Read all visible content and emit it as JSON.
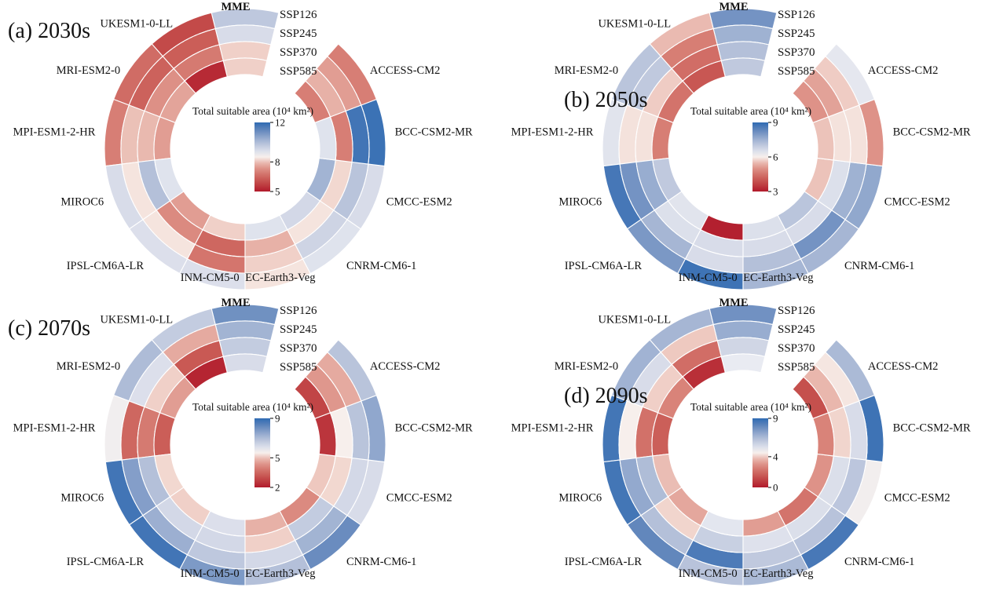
{
  "colors": {
    "background": "#ffffff",
    "text": "#111111",
    "cell_border": "#ffffff",
    "colormap_stops": [
      [
        0.0,
        "#b11a2b"
      ],
      [
        0.15,
        "#c6524e"
      ],
      [
        0.3,
        "#d98379"
      ],
      [
        0.4,
        "#e7b1a7"
      ],
      [
        0.47,
        "#f2d7cf"
      ],
      [
        0.5,
        "#f7efec"
      ],
      [
        0.53,
        "#eaecf2"
      ],
      [
        0.6,
        "#d8dce9"
      ],
      [
        0.7,
        "#b4c0d9"
      ],
      [
        0.8,
        "#8aa3cb"
      ],
      [
        0.9,
        "#5d83ba"
      ],
      [
        1.0,
        "#2e6bb3"
      ]
    ]
  },
  "chart_data": [
    {
      "type": "heatmap",
      "layout": "circular-rings",
      "title": "(a) 2030s",
      "colorbar": {
        "title": "Total suitable area (10⁴ km²)",
        "max": 12,
        "mid": 8,
        "min": 5
      },
      "rings": [
        "SSP126",
        "SSP245",
        "SSP370",
        "SSP585"
      ],
      "categories": [
        "MME",
        "UKESM1-0-LL",
        "MRI-ESM2-0",
        "MPI-ESM1-2-HR",
        "MIROC6",
        "IPSL-CM6A-LR",
        "INM-CM5-0",
        "EC-Earth3-Veg",
        "CNRM-CM6-1",
        "CMCC-ESM2",
        "BCC-CSM2-MR",
        "ACCESS-CM2"
      ],
      "series": [
        {
          "name": "MME",
          "values": [
            9.7,
            9.2,
            8.2,
            8.2
          ]
        },
        {
          "name": "UKESM1-0-LL",
          "values": [
            5.9,
            6.3,
            6.9,
            5.3
          ]
        },
        {
          "name": "MRI-ESM2-0",
          "values": [
            6.6,
            6.4,
            7.3,
            7.6
          ]
        },
        {
          "name": "MPI-ESM1-2-HR",
          "values": [
            7.0,
            8.0,
            7.9,
            7.5
          ]
        },
        {
          "name": "MIROC6",
          "values": [
            9.2,
            8.4,
            9.9,
            9.0
          ]
        },
        {
          "name": "IPSL-CM6A-LR",
          "values": [
            9.1,
            8.4,
            7.2,
            7.5
          ]
        },
        {
          "name": "INM-CM5-0",
          "values": [
            9.1,
            6.8,
            6.5,
            8.2
          ]
        },
        {
          "name": "EC-Earth3-Veg",
          "values": [
            8.4,
            8.2,
            7.8,
            9.0
          ]
        },
        {
          "name": "CNRM-CM6-1",
          "values": [
            9.0,
            9.4,
            8.4,
            9.3
          ]
        },
        {
          "name": "CMCC-ESM2",
          "values": [
            9.2,
            9.8,
            8.3,
            10.2
          ]
        },
        {
          "name": "BCC-CSM2-MR",
          "values": [
            11.8,
            11.7,
            7.0,
            9.0
          ]
        },
        {
          "name": "ACCESS-CM2",
          "values": [
            7.0,
            7.5,
            7.8,
            7.0
          ]
        }
      ]
    },
    {
      "type": "heatmap",
      "layout": "circular-rings",
      "title": "(b) 2050s",
      "colorbar": {
        "title": "Total suitable area (10⁴ km²)",
        "max": 9,
        "mid": 6,
        "min": 3
      },
      "rings": [
        "SSP126",
        "SSP245",
        "SSP370",
        "SSP585"
      ],
      "categories": [
        "MME",
        "UKESM1-0-LL",
        "MRI-ESM2-0",
        "MPI-ESM1-2-HR",
        "MIROC6",
        "IPSL-CM6A-LR",
        "INM-CM5-0",
        "EC-Earth3-Veg",
        "CNRM-CM6-1",
        "CMCC-ESM2",
        "BCC-CSM2-MR",
        "ACCESS-CM2"
      ],
      "series": [
        {
          "name": "MME",
          "values": [
            8.1,
            7.5,
            7.2,
            7.0
          ]
        },
        {
          "name": "UKESM1-0-LL",
          "values": [
            5.5,
            4.7,
            4.4,
            4.0
          ]
        },
        {
          "name": "MRI-ESM2-0",
          "values": [
            7.1,
            7.0,
            5.7,
            4.5
          ]
        },
        {
          "name": "MPI-ESM1-2-HR",
          "values": [
            6.4,
            5.9,
            5.9,
            4.7
          ]
        },
        {
          "name": "MIROC6",
          "values": [
            8.7,
            8.1,
            7.6,
            7.0
          ]
        },
        {
          "name": "IPSL-CM6A-LR",
          "values": [
            8.0,
            7.4,
            6.5,
            6.4
          ]
        },
        {
          "name": "INM-CM5-0",
          "values": [
            8.8,
            6.6,
            6.6,
            3.1
          ]
        },
        {
          "name": "EC-Earth3-Veg",
          "values": [
            7.4,
            7.2,
            6.6,
            6.5
          ]
        },
        {
          "name": "CNRM-CM6-1",
          "values": [
            7.4,
            8.1,
            6.6,
            7.1
          ]
        },
        {
          "name": "CMCC-ESM2",
          "values": [
            7.7,
            7.5,
            6.5,
            5.6
          ]
        },
        {
          "name": "BCC-CSM2-MR",
          "values": [
            5.0,
            5.9,
            5.9,
            5.6
          ]
        },
        {
          "name": "ACCESS-CM2",
          "values": [
            6.3,
            5.7,
            5.2,
            5.0
          ]
        }
      ]
    },
    {
      "type": "heatmap",
      "layout": "circular-rings",
      "title": "(c) 2070s",
      "colorbar": {
        "title": "Total suitable area (10⁴ km²)",
        "max": 9,
        "mid": 5,
        "min": 2
      },
      "rings": [
        "SSP126",
        "SSP245",
        "SSP370",
        "SSP585"
      ],
      "categories": [
        "MME",
        "UKESM1-0-LL",
        "MRI-ESM2-0",
        "MPI-ESM1-2-HR",
        "MIROC6",
        "IPSL-CM6A-LR",
        "INM-CM5-0",
        "EC-Earth3-Veg",
        "CNRM-CM6-1",
        "CMCC-ESM2",
        "BCC-CSM2-MR",
        "ACCESS-CM2"
      ],
      "series": [
        {
          "name": "MME",
          "values": [
            8.0,
            7.2,
            6.6,
            6.2
          ]
        },
        {
          "name": "UKESM1-0-LL",
          "values": [
            6.6,
            4.7,
            3.2,
            2.2
          ]
        },
        {
          "name": "MRI-ESM2-0",
          "values": [
            7.0,
            6.1,
            5.2,
            4.5
          ]
        },
        {
          "name": "MPI-ESM1-2-HR",
          "values": [
            5.6,
            3.5,
            3.9,
            3.3
          ]
        },
        {
          "name": "MIROC6",
          "values": [
            8.7,
            7.7,
            6.9,
            5.3
          ]
        },
        {
          "name": "IPSL-CM6A-LR",
          "values": [
            8.7,
            7.3,
            6.3,
            5.2
          ]
        },
        {
          "name": "INM-CM5-0",
          "values": [
            7.8,
            6.7,
            6.3,
            6.1
          ]
        },
        {
          "name": "EC-Earth3-Veg",
          "values": [
            6.9,
            6.3,
            5.2,
            4.8
          ]
        },
        {
          "name": "CNRM-CM6-1",
          "values": [
            8.1,
            7.2,
            6.6,
            4.2
          ]
        },
        {
          "name": "CMCC-ESM2",
          "values": [
            6.2,
            6.3,
            5.3,
            5.1
          ]
        },
        {
          "name": "BCC-CSM2-MR",
          "values": [
            7.5,
            6.8,
            5.5,
            2.5
          ]
        },
        {
          "name": "ACCESS-CM2",
          "values": [
            6.8,
            4.7,
            4.4,
            2.8
          ]
        }
      ]
    },
    {
      "type": "heatmap",
      "layout": "circular-rings",
      "title": "(d) 2090s",
      "colorbar": {
        "title": "Total suitable area (10⁴ km²)",
        "max": 9,
        "mid": 4,
        "min": 0
      },
      "rings": [
        "SSP126",
        "SSP245",
        "SSP370",
        "SSP585"
      ],
      "categories": [
        "MME",
        "UKESM1-0-LL",
        "MRI-ESM2-0",
        "MPI-ESM1-2-HR",
        "MIROC6",
        "IPSL-CM6A-LR",
        "INM-CM5-0",
        "EC-Earth3-Veg",
        "CNRM-CM6-1",
        "CMCC-ESM2",
        "BCC-CSM2-MR",
        "ACCESS-CM2"
      ],
      "series": [
        {
          "name": "MME",
          "values": [
            7.7,
            6.9,
            5.6,
            4.8
          ]
        },
        {
          "name": "UKESM1-0-LL",
          "values": [
            6.6,
            4.0,
            2.1,
            0.5
          ]
        },
        {
          "name": "MRI-ESM2-0",
          "values": [
            6.7,
            5.4,
            4.1,
            2.7
          ]
        },
        {
          "name": "MPI-ESM1-2-HR",
          "values": [
            8.6,
            4.5,
            2.2,
            1.7
          ]
        },
        {
          "name": "MIROC6",
          "values": [
            8.6,
            7.0,
            6.4,
            3.8
          ]
        },
        {
          "name": "IPSL-CM6A-LR",
          "values": [
            8.0,
            6.3,
            4.2,
            3.4
          ]
        },
        {
          "name": "INM-CM5-0",
          "values": [
            6.2,
            8.4,
            5.8,
            5.0
          ]
        },
        {
          "name": "EC-Earth3-Veg",
          "values": [
            6.5,
            6.0,
            5.2,
            3.2
          ]
        },
        {
          "name": "CNRM-CM6-1",
          "values": [
            8.5,
            6.2,
            5.3,
            2.3
          ]
        },
        {
          "name": "CMCC-ESM2",
          "values": [
            4.6,
            6.1,
            5.3,
            3.0
          ]
        },
        {
          "name": "BCC-CSM2-MR",
          "values": [
            8.7,
            5.4,
            4.2,
            2.7
          ]
        },
        {
          "name": "ACCESS-CM2",
          "values": [
            6.5,
            4.4,
            3.7,
            1.3
          ]
        }
      ]
    }
  ]
}
